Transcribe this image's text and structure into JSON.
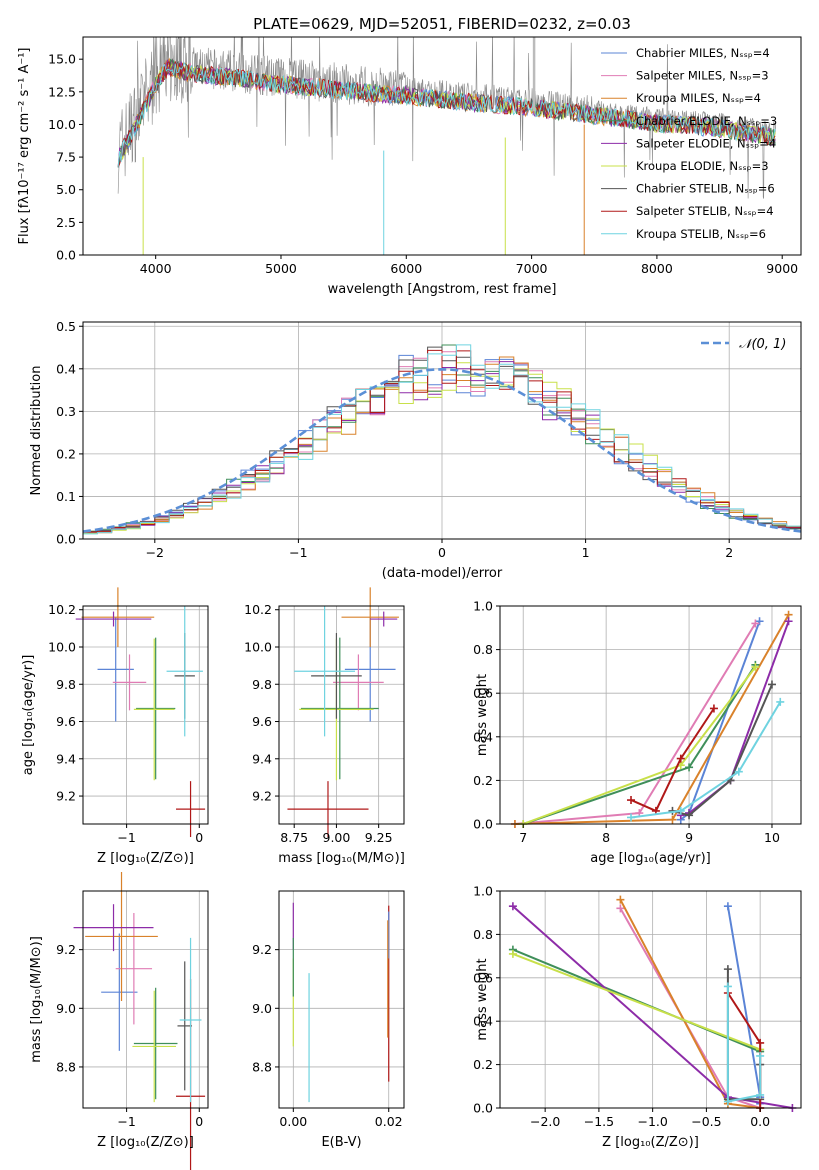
{
  "colors": {
    "series": [
      "#5b84d6",
      "#e07cb4",
      "#d9822b",
      "#3f8f5a",
      "#8d2ca8",
      "#c8e04a",
      "#555555",
      "#b01818",
      "#6fd3e0"
    ],
    "grid": "#b0b0b0",
    "normal": "#5b8fd6"
  },
  "chart_data": [
    {
      "id": "spectrum",
      "type": "line",
      "title": "PLATE=0629, MJD=52051, FIBERID=0232, z=0.03",
      "xlabel": "wavelength [Angstrom, rest frame]",
      "ylabel": "Flux [fλ10⁻¹⁷ erg cm⁻² s⁻¹ A⁻¹]",
      "xlim": [
        3420,
        9150
      ],
      "ylim": [
        0,
        16.7
      ],
      "xticks": [
        4000,
        5000,
        6000,
        7000,
        8000,
        9000
      ],
      "yticks": [
        0.0,
        2.5,
        5.0,
        7.5,
        10.0,
        12.5,
        15.0
      ],
      "ytick_labels": [
        "0.0",
        "2.5",
        "5.0",
        "7.5",
        "10.0",
        "12.5",
        "15.0"
      ],
      "legend": [
        "Chabrier MILES, Nₛₛₚ=4",
        "Salpeter MILES, Nₛₛₚ=3",
        "Kroupa MILES, Nₛₛₚ=4",
        "Chabrier ELODIE, Nₛₛₚ=3",
        "Salpeter ELODIE, Nₛₛₚ=4",
        "Kroupa ELODIE, Nₛₛₚ=3",
        "Chabrier STELIB, Nₛₛₚ=6",
        "Salpeter STELIB, Nₛₛₚ=4",
        "Kroupa STELIB, Nₛₛₚ=6"
      ],
      "legend_loc": "upper right",
      "continuum": [
        [
          3700,
          7.9
        ],
        [
          3850,
          10.5
        ],
        [
          4000,
          13.6
        ],
        [
          4100,
          14.9
        ],
        [
          4300,
          14.4
        ],
        [
          4600,
          14.1
        ],
        [
          5000,
          13.6
        ],
        [
          5500,
          13.1
        ],
        [
          6000,
          12.7
        ],
        [
          6500,
          12.2
        ],
        [
          7000,
          11.8
        ],
        [
          7500,
          11.2
        ],
        [
          8000,
          10.6
        ],
        [
          8500,
          10.2
        ],
        [
          8950,
          9.5
        ]
      ]
    },
    {
      "id": "residuals",
      "type": "histogram",
      "xlabel": "(data-model)/error",
      "ylabel": "Normed distribution",
      "xlim": [
        -2.5,
        2.5
      ],
      "ylim": [
        0,
        0.51
      ],
      "xticks": [
        -2,
        -1,
        0,
        1,
        2
      ],
      "xtick_labels": [
        "−2",
        "−1",
        "0",
        "1",
        "2"
      ],
      "yticks": [
        0.0,
        0.1,
        0.2,
        0.3,
        0.4,
        0.5
      ],
      "ytick_labels": [
        "0.0",
        "0.1",
        "0.2",
        "0.3",
        "0.4",
        "0.5"
      ],
      "bin_width": 0.1,
      "legend": [
        "𝒩(0, 1)"
      ],
      "legend_loc": "upper right"
    },
    {
      "id": "age-Z",
      "type": "errorbar",
      "xlabel": "Z [log₁₀(Z/Z⊙)]",
      "ylabel": "age  [log₁₀(age/yr)]",
      "xlim": [
        -1.6,
        0.12
      ],
      "ylim": [
        9.05,
        10.22
      ],
      "xticks": [
        -1,
        0
      ],
      "xtick_labels": [
        "−1",
        "0"
      ],
      "yticks": [
        9.2,
        9.4,
        9.6,
        9.8,
        10.0,
        10.2
      ],
      "ytick_labels": [
        "9.2",
        "9.4",
        "9.6",
        "9.8",
        "10.0",
        "10.2"
      ],
      "points": [
        {
          "x": -1.15,
          "y": 9.88,
          "xerr": 0.25,
          "yerr": 0.28,
          "color": 0
        },
        {
          "x": -0.96,
          "y": 9.81,
          "xerr": 0.23,
          "yerr": 0.15,
          "color": 1
        },
        {
          "x": -1.12,
          "y": 10.16,
          "xerr": 0.5,
          "yerr": 0.16,
          "color": 2
        },
        {
          "x": -0.6,
          "y": 9.67,
          "xerr": 0.27,
          "yerr": 0.38,
          "color": 3
        },
        {
          "x": -1.18,
          "y": 10.15,
          "xerr": 0.52,
          "yerr": 0.04,
          "color": 4
        },
        {
          "x": -0.62,
          "y": 9.665,
          "xerr": 0.28,
          "yerr": 0.38,
          "color": 5
        },
        {
          "x": -0.2,
          "y": 9.845,
          "xerr": 0.14,
          "yerr": 0.23,
          "color": 6
        },
        {
          "x": -0.12,
          "y": 9.13,
          "xerr": 0.2,
          "yerr": 0.15,
          "color": 7
        },
        {
          "x": -0.2,
          "y": 9.87,
          "xerr": 0.25,
          "yerr": 0.35,
          "color": 8
        }
      ]
    },
    {
      "id": "age-mass",
      "type": "errorbar",
      "xlabel": "mass [log₁₀(M/M⊙)]",
      "ylabel": "",
      "xlim": [
        8.66,
        9.4
      ],
      "ylim": [
        9.05,
        10.22
      ],
      "xticks": [
        8.75,
        9.0,
        9.25
      ],
      "xtick_labels": [
        "8.75",
        "9.00",
        "9.25"
      ],
      "yticks": [
        9.2,
        9.4,
        9.6,
        9.8,
        10.0,
        10.2
      ],
      "ytick_labels": [
        "9.2",
        "9.4",
        "9.6",
        "9.8",
        "10.0",
        "10.2"
      ],
      "points": [
        {
          "x": 9.2,
          "y": 9.88,
          "xerr": 0.15,
          "yerr": 0.28,
          "color": 0
        },
        {
          "x": 9.13,
          "y": 9.81,
          "xerr": 0.15,
          "yerr": 0.15,
          "color": 1
        },
        {
          "x": 9.2,
          "y": 10.16,
          "xerr": 0.17,
          "yerr": 0.16,
          "color": 2
        },
        {
          "x": 9.02,
          "y": 9.67,
          "xerr": 0.23,
          "yerr": 0.38,
          "color": 3
        },
        {
          "x": 9.28,
          "y": 10.15,
          "xerr": 0.08,
          "yerr": 0.04,
          "color": 4
        },
        {
          "x": 9.0,
          "y": 9.665,
          "xerr": 0.22,
          "yerr": 0.38,
          "color": 5
        },
        {
          "x": 9.0,
          "y": 9.845,
          "xerr": 0.15,
          "yerr": 0.23,
          "color": 6
        },
        {
          "x": 8.95,
          "y": 9.13,
          "xerr": 0.24,
          "yerr": 0.15,
          "color": 7
        },
        {
          "x": 8.93,
          "y": 9.87,
          "xerr": 0.18,
          "yerr": 0.35,
          "color": 8
        }
      ]
    },
    {
      "id": "weight-age",
      "type": "line",
      "xlabel": "age  [log₁₀(age/yr)]",
      "ylabel": "mass weight",
      "xlim": [
        6.72,
        10.35
      ],
      "ylim": [
        0,
        1
      ],
      "xticks": [
        7,
        8,
        9,
        10
      ],
      "xtick_labels": [
        "7",
        "8",
        "9",
        "10"
      ],
      "yticks": [
        0.0,
        0.2,
        0.4,
        0.6,
        0.8,
        1.0
      ],
      "ytick_labels": [
        "0.0",
        "0.2",
        "0.4",
        "0.6",
        "0.8",
        "1.0"
      ],
      "series": [
        {
          "color": 0,
          "x": [
            8.9,
            9.0,
            9.85
          ],
          "y": [
            0.02,
            0.05,
            0.93
          ]
        },
        {
          "color": 1,
          "x": [
            6.9,
            8.4,
            9.8
          ],
          "y": [
            0.0,
            0.05,
            0.92
          ]
        },
        {
          "color": 2,
          "x": [
            6.9,
            8.8,
            10.2
          ],
          "y": [
            0.0,
            0.02,
            0.96
          ]
        },
        {
          "color": 3,
          "x": [
            7.0,
            9.0,
            9.8
          ],
          "y": [
            0.0,
            0.26,
            0.73
          ]
        },
        {
          "color": 4,
          "x": [
            8.9,
            9.0,
            9.5,
            10.2
          ],
          "y": [
            0.04,
            0.05,
            0.2,
            0.93
          ]
        },
        {
          "color": 5,
          "x": [
            7.0,
            8.9,
            9.8
          ],
          "y": [
            0.0,
            0.27,
            0.72
          ]
        },
        {
          "color": 6,
          "x": [
            8.8,
            9.0,
            9.5,
            10.0
          ],
          "y": [
            0.06,
            0.04,
            0.2,
            0.64
          ]
        },
        {
          "color": 7,
          "x": [
            8.3,
            8.6,
            8.9,
            9.3
          ],
          "y": [
            0.11,
            0.06,
            0.3,
            0.53
          ]
        },
        {
          "color": 8,
          "x": [
            8.3,
            8.9,
            9.6,
            10.1
          ],
          "y": [
            0.03,
            0.06,
            0.24,
            0.56
          ]
        }
      ]
    },
    {
      "id": "mass-Z",
      "type": "errorbar",
      "xlabel": "Z [log₁₀(Z/Z⊙)]",
      "ylabel": "mass [log₁₀(M/M⊙)]",
      "xlim": [
        -1.6,
        0.12
      ],
      "ylim": [
        8.66,
        9.4
      ],
      "xticks": [
        -1,
        0
      ],
      "xtick_labels": [
        "−1",
        "0"
      ],
      "yticks": [
        8.8,
        9.0,
        9.2
      ],
      "ytick_labels": [
        "8.8",
        "9.0",
        "9.2"
      ],
      "points": [
        {
          "x": -1.1,
          "y": 9.055,
          "xerr": 0.25,
          "yerr": 0.2,
          "color": 0
        },
        {
          "x": -0.9,
          "y": 9.135,
          "xerr": 0.25,
          "yerr": 0.19,
          "color": 1
        },
        {
          "x": -1.07,
          "y": 9.245,
          "xerr": 0.5,
          "yerr": 0.22,
          "color": 2
        },
        {
          "x": -0.6,
          "y": 8.88,
          "xerr": 0.3,
          "yerr": 0.19,
          "color": 3
        },
        {
          "x": -1.18,
          "y": 9.275,
          "xerr": 0.55,
          "yerr": 0.08,
          "color": 4
        },
        {
          "x": -0.62,
          "y": 8.87,
          "xerr": 0.3,
          "yerr": 0.19,
          "color": 5
        },
        {
          "x": -0.2,
          "y": 8.94,
          "xerr": 0.1,
          "yerr": 0.22,
          "color": 6
        },
        {
          "x": -0.12,
          "y": 8.7,
          "xerr": 0.2,
          "yerr": 0.4,
          "color": 7
        },
        {
          "x": -0.12,
          "y": 8.96,
          "xerr": 0.15,
          "yerr": 0.28,
          "color": 8
        }
      ]
    },
    {
      "id": "mass-ebv",
      "type": "errorbar",
      "xlabel": "E(B-V)",
      "ylabel": "",
      "xlim": [
        -0.003,
        0.0232
      ],
      "ylim": [
        8.66,
        9.4
      ],
      "xticks": [
        0.0,
        0.02
      ],
      "xtick_labels": [
        "0.00",
        "0.02"
      ],
      "yticks": [
        8.8,
        9.0,
        9.2
      ],
      "ytick_labels": [
        "8.8",
        "9.0",
        "9.2"
      ],
      "points": [
        {
          "x": 0.0,
          "y": 9.28,
          "xerr": 0,
          "yerr": 0.08,
          "color": 4
        },
        {
          "x": 0.0,
          "y": 9.02,
          "xerr": 0,
          "yerr": 0.15,
          "color": 5
        },
        {
          "x": 0.0,
          "y": 9.14,
          "xerr": 0,
          "yerr": 0.1,
          "color": 3
        },
        {
          "x": 0.0033,
          "y": 8.9,
          "xerr": 0,
          "yerr": 0.22,
          "color": 8
        },
        {
          "x": 0.02,
          "y": 9.05,
          "xerr": 0,
          "yerr": 0.3,
          "color": 7
        },
        {
          "x": 0.02,
          "y": 9.25,
          "xerr": 0,
          "yerr": 0.08,
          "color": 0
        },
        {
          "x": 0.0198,
          "y": 9.1,
          "xerr": 0,
          "yerr": 0.2,
          "color": 2
        }
      ]
    },
    {
      "id": "weight-Z",
      "type": "line",
      "xlabel": "Z [log₁₀(Z/Z⊙)]",
      "ylabel": "mass weight",
      "xlim": [
        -2.42,
        0.38
      ],
      "ylim": [
        0,
        1
      ],
      "xticks": [
        -2.0,
        -1.5,
        -1.0,
        -0.5,
        0.0
      ],
      "xtick_labels": [
        "−2.0",
        "−1.5",
        "−1.0",
        "−0.5",
        "0.0"
      ],
      "yticks": [
        0.0,
        0.2,
        0.4,
        0.6,
        0.8,
        1.0
      ],
      "ytick_labels": [
        "0.0",
        "0.2",
        "0.4",
        "0.6",
        "0.8",
        "1.0"
      ],
      "series": [
        {
          "color": 0,
          "x": [
            -0.3,
            0.0,
            0.0
          ],
          "y": [
            0.93,
            0.05,
            0.02
          ]
        },
        {
          "color": 1,
          "x": [
            -1.3,
            -0.3,
            0.0
          ],
          "y": [
            0.92,
            0.05,
            0.0
          ]
        },
        {
          "color": 2,
          "x": [
            -1.3,
            -0.3,
            0.0
          ],
          "y": [
            0.96,
            0.02,
            0.0
          ]
        },
        {
          "color": 3,
          "x": [
            -2.3,
            0.0
          ],
          "y": [
            0.73,
            0.26
          ]
        },
        {
          "color": 4,
          "x": [
            -2.3,
            -0.3,
            0.3
          ],
          "y": [
            0.93,
            0.05,
            0.0
          ]
        },
        {
          "color": 5,
          "x": [
            -2.3,
            0.0
          ],
          "y": [
            0.71,
            0.27
          ]
        },
        {
          "color": 6,
          "x": [
            -0.3,
            -0.3,
            0.0,
            0.0
          ],
          "y": [
            0.64,
            0.04,
            0.04,
            0.2
          ]
        },
        {
          "color": 7,
          "x": [
            -0.3,
            0.0,
            0.0
          ],
          "y": [
            0.53,
            0.3,
            0.0
          ]
        },
        {
          "color": 8,
          "x": [
            -0.3,
            -0.3,
            0.0,
            0.0
          ],
          "y": [
            0.56,
            0.03,
            0.06,
            0.24
          ]
        }
      ]
    }
  ]
}
